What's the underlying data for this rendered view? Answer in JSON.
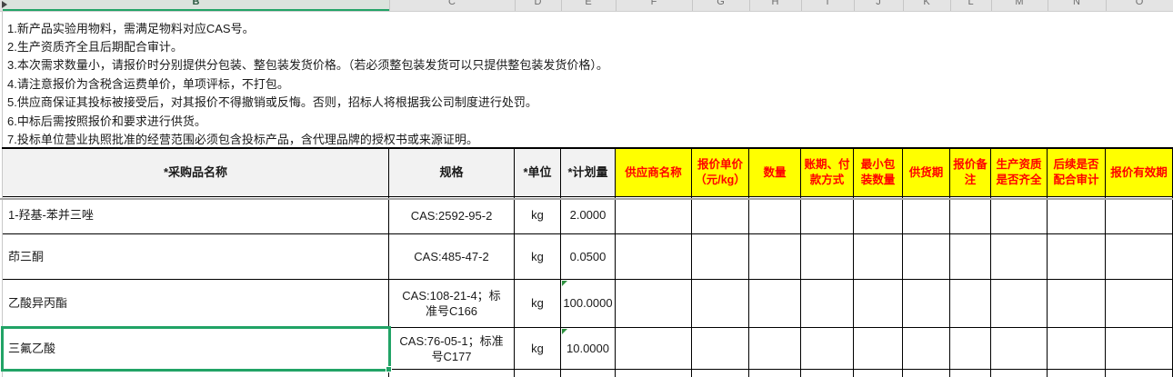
{
  "sheet": {
    "column_letters": [
      "B",
      "C",
      "D",
      "E",
      "F",
      "G",
      "H",
      "I",
      "J",
      "K",
      "L",
      "M",
      "N",
      "O"
    ],
    "selected_column": "B"
  },
  "notes": [
    "1.新产品实验用物料，需满足物料对应CAS号。",
    "2.生产资质齐全且后期配合审计。",
    "3.本次需求数量小，请报价时分别提供分包装、整包装发货价格。（若必须整包装发货可以只提供整包装发货价格）。",
    "4.请注意报价为含税含运费单价，单项评标，不打包。",
    "5.供应商保证其投标被接受后，对其报价不得撤销或反悔。否则，招标人将根据我公司制度进行处罚。",
    "6.中标后需按照报价和要求进行供货。",
    "7.投标单位营业执照批准的经营范围必须包含投标产品，含代理品牌的授权书或来源证明。"
  ],
  "table": {
    "plain_headers": [
      "*采购品名称",
      "规格",
      "*单位",
      "*计划量"
    ],
    "highlight_headers": [
      "供应商名称",
      "报价单价（元/kg）",
      "数量",
      "账期、付款方式",
      "最小包装数量",
      "供货期",
      "报价备注",
      "生产资质是否齐全",
      "后续是否配合审计",
      "报价有效期"
    ],
    "rows": [
      {
        "name": "1-羟基-苯并三唑",
        "spec": "CAS:2592-95-2",
        "unit": "kg",
        "qty": "2.0000",
        "flag": false,
        "selected": false
      },
      {
        "name": "茚三酮",
        "spec": "CAS:485-47-2",
        "unit": "kg",
        "qty": "0.0500",
        "flag": false,
        "selected": false
      },
      {
        "name": "乙酸异丙酯",
        "spec": "CAS:108-21-4；标准号C166",
        "unit": "kg",
        "qty": "100.0000",
        "flag": true,
        "selected": false
      },
      {
        "name": "三氟乙酸",
        "spec": "CAS:76-05-1；标准号C177",
        "unit": "kg",
        "qty": "10.0000",
        "flag": true,
        "selected": true
      }
    ],
    "selected_cell": {
      "column": "B",
      "value": "三氟乙酸"
    }
  },
  "colors": {
    "highlight_bg": "#FFFF00",
    "highlight_text": "#FF0000",
    "selection_green": "#21A366",
    "header_gray_bg": "#F2F2F2",
    "error_flag_green": "#2E9140",
    "grid_border": "#000000"
  }
}
